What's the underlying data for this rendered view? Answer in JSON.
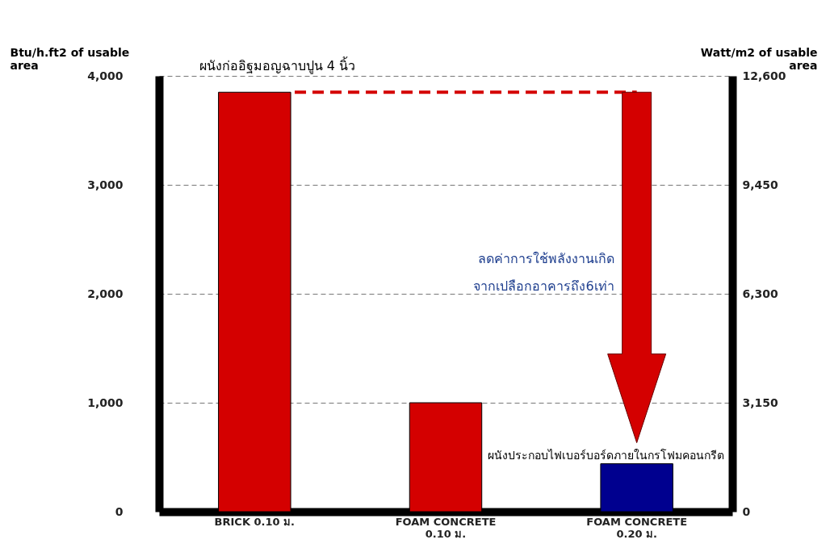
{
  "chart_data": {
    "type": "bar",
    "title": "ผนังก่ออิฐมอญฉาบปูน 4 นิ้ว",
    "ylabel": "Btu/h.ft2 of usable area",
    "y2label": "Watt/m2 of usable area",
    "categories": [
      "BRICK 0.10 ม.",
      "FOAM CONCRETE 0.10 ม.",
      "FOAM CONCRETE 0.20 ม."
    ],
    "values": [
      3850,
      1000,
      440
    ],
    "colors": [
      "#d40000",
      "#d40000",
      "#00008f"
    ],
    "ylim": [
      0,
      4000
    ],
    "yticks": [
      0,
      {
        "value": 1000,
        "label": "1,000"
      },
      {
        "value": 2000,
        "label": "2,000"
      },
      {
        "value": 3000,
        "label": "3,000"
      },
      {
        "value": 4000,
        "label": "4,000"
      }
    ],
    "y2lim": [
      0,
      12600
    ],
    "y2ticks": [
      0,
      {
        "value": 3150,
        "label": "3,150"
      },
      {
        "value": 6300,
        "label": "6,300"
      },
      {
        "value": 9450,
        "label": "9,450"
      },
      {
        "value": 12600,
        "label": "12,600"
      }
    ],
    "grid": "y",
    "ref_lines": [
      {
        "axis": "y",
        "value": 3850,
        "label": null,
        "color": "#d40000",
        "line_style": "dashed"
      }
    ],
    "annotations": [
      "ลดค่าการใช้พลังงานเกิด",
      "จากเปลือกอาคารถึง6เท่า",
      {
        "text": "ผนังประกอบไฟเบอร์บอร์ดภายในกรโฟมคอนกรีต",
        "x": "FOAM CONCRETE 0.20 ม.",
        "y": 440
      }
    ]
  }
}
